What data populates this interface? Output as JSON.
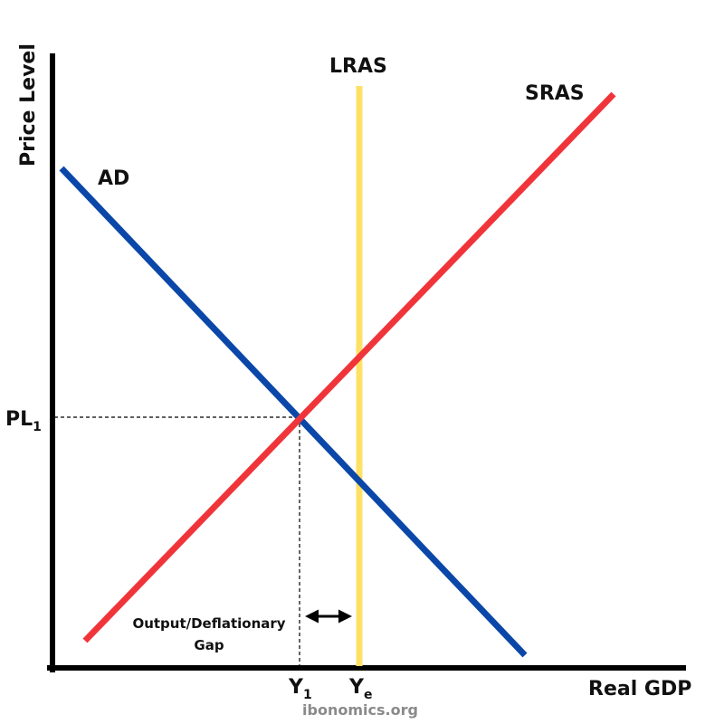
{
  "axes": {
    "y_label": "Price Level",
    "x_label": "Real GDP"
  },
  "curves": {
    "ad": {
      "label": "AD",
      "color": "#0a47a8"
    },
    "sras": {
      "label": "SRAS",
      "color": "#f0353a"
    },
    "lras": {
      "label": "LRAS",
      "color": "#ffe066"
    }
  },
  "ticks": {
    "price_level": {
      "base": "PL",
      "sub": "1"
    },
    "output_actual": {
      "base": "Y",
      "sub": "1"
    },
    "output_potential": {
      "base": "Y",
      "sub": "e"
    }
  },
  "gap_annotation": {
    "line1": "Output/Deflationary",
    "line2": "Gap"
  },
  "watermark": "ibonomics.org",
  "colors": {
    "axis": "#000000",
    "guide": "#000000"
  }
}
